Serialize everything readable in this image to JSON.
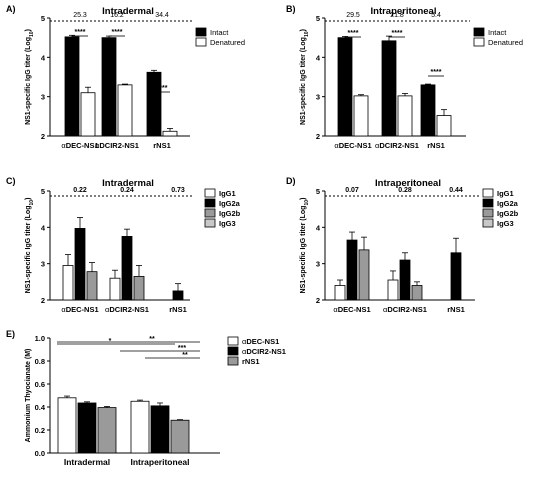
{
  "chart_data": [
    {
      "panel": "A)",
      "type": "bar",
      "title": "Intradermal",
      "ylabel": "NS1-specific IgG titer (Log10)",
      "ylim": [
        2,
        5
      ],
      "yticks": [
        "2",
        "3",
        "4",
        "5"
      ],
      "categories": [
        "αDEC-NS1",
        "αDCIR2-NS1",
        "rNS1"
      ],
      "series": [
        {
          "name": "Intact",
          "values": [
            4.52,
            4.5,
            3.62
          ],
          "errors": [
            0.04,
            0.04,
            0.05
          ]
        },
        {
          "name": "Denatured",
          "values": [
            3.1,
            3.3,
            2.12
          ],
          "errors": [
            0.14,
            0.02,
            0.07
          ]
        }
      ],
      "top_labels": [
        "25.3",
        "16.2",
        "34.4"
      ],
      "significance": [
        "****",
        "****",
        "****"
      ],
      "legend": "top-right"
    },
    {
      "panel": "B)",
      "type": "bar",
      "title": "Intraperitoneal",
      "ylabel": "NS1-specific IgG titer (Log10)",
      "ylim": [
        2,
        5
      ],
      "yticks": [
        "2",
        "3",
        "4",
        "5"
      ],
      "categories": [
        "αDEC-NS1",
        "αDCIR2-NS1",
        "rNS1"
      ],
      "series": [
        {
          "name": "Intact",
          "values": [
            4.5,
            4.42,
            3.3
          ],
          "errors": [
            0.03,
            0.12,
            0.02
          ]
        },
        {
          "name": "Denatured",
          "values": [
            3.02,
            3.02,
            2.52
          ],
          "errors": [
            0.03,
            0.06,
            0.15
          ]
        }
      ],
      "top_labels": [
        "29.5",
        "21.8",
        "5.4"
      ],
      "significance": [
        "****",
        "****",
        "****"
      ],
      "legend": "top-right"
    },
    {
      "panel": "C)",
      "type": "bar",
      "title": "Intradermal",
      "ylabel": "NS1-specific IgG titer (Log10)",
      "ylim": [
        2,
        5
      ],
      "yticks": [
        "2",
        "3",
        "4",
        "5"
      ],
      "categories": [
        "αDEC-NS1",
        "αDCIR2-NS1",
        "rNS1"
      ],
      "series": [
        {
          "name": "IgG1",
          "values": [
            2.95,
            2.6,
            null
          ],
          "errors": [
            0.3,
            0.22,
            null
          ]
        },
        {
          "name": "IgG2a",
          "values": [
            3.97,
            3.75,
            2.25
          ],
          "errors": [
            0.3,
            0.2,
            0.2
          ]
        },
        {
          "name": "IgG2b",
          "values": [
            2.78,
            2.65,
            null
          ],
          "errors": [
            0.25,
            0.3,
            null
          ]
        },
        {
          "name": "IgG3",
          "values": [
            null,
            null,
            null
          ],
          "errors": [
            null,
            null,
            null
          ]
        }
      ],
      "top_labels": [
        "0.22",
        "0.24",
        "0.73"
      ],
      "legend": "top-right"
    },
    {
      "panel": "D)",
      "type": "bar",
      "title": "Intraperitoneal",
      "ylabel": "NS1-specific IgG titer (Log10)",
      "ylim": [
        2,
        5
      ],
      "yticks": [
        "2",
        "3",
        "4",
        "5"
      ],
      "categories": [
        "αDEC-NS1",
        "αDCIR2-NS1",
        "rNS1"
      ],
      "series": [
        {
          "name": "IgG1",
          "values": [
            2.4,
            2.55,
            null
          ],
          "errors": [
            0.15,
            0.25,
            null
          ]
        },
        {
          "name": "IgG2a",
          "values": [
            3.65,
            3.1,
            3.3
          ],
          "errors": [
            0.22,
            0.2,
            0.4
          ]
        },
        {
          "name": "IgG2b",
          "values": [
            3.38,
            2.4,
            null
          ],
          "errors": [
            0.35,
            0.1,
            null
          ]
        },
        {
          "name": "IgG3",
          "values": [
            null,
            null,
            null
          ],
          "errors": [
            null,
            null,
            null
          ]
        }
      ],
      "top_labels": [
        "0.07",
        "0.28",
        "0.44"
      ],
      "legend": "top-right"
    },
    {
      "panel": "E)",
      "type": "bar",
      "ylabel": "Ammonium Thyocianate (M)",
      "ylim": [
        0,
        1
      ],
      "yticks": [
        "0.0",
        "0.2",
        "0.4",
        "0.6",
        "0.8",
        "1.0"
      ],
      "categories": [
        "Intradermal",
        "Intraperitoneal"
      ],
      "series": [
        {
          "name": "αDEC-NS1",
          "values": [
            0.48,
            0.45
          ],
          "errors": [
            0.015,
            0.01
          ]
        },
        {
          "name": "αDCIR2-NS1",
          "values": [
            0.435,
            0.41
          ],
          "errors": [
            0.01,
            0.025
          ]
        },
        {
          "name": "rNS1",
          "values": [
            0.395,
            0.285
          ],
          "errors": [
            0.01,
            0.005
          ]
        }
      ],
      "significance": [
        "*",
        "**",
        "***",
        "**"
      ],
      "legend": "top-right"
    }
  ],
  "colors": {
    "intact": "#000000",
    "denatured": "#ffffff",
    "igg1": "#ffffff",
    "igg2a": "#000000",
    "igg2b": "#9a9a9a",
    "igg3": "#c8c8c8",
    "adec": "#ffffff",
    "adcir2": "#000000",
    "rns1": "#9a9a9a"
  }
}
